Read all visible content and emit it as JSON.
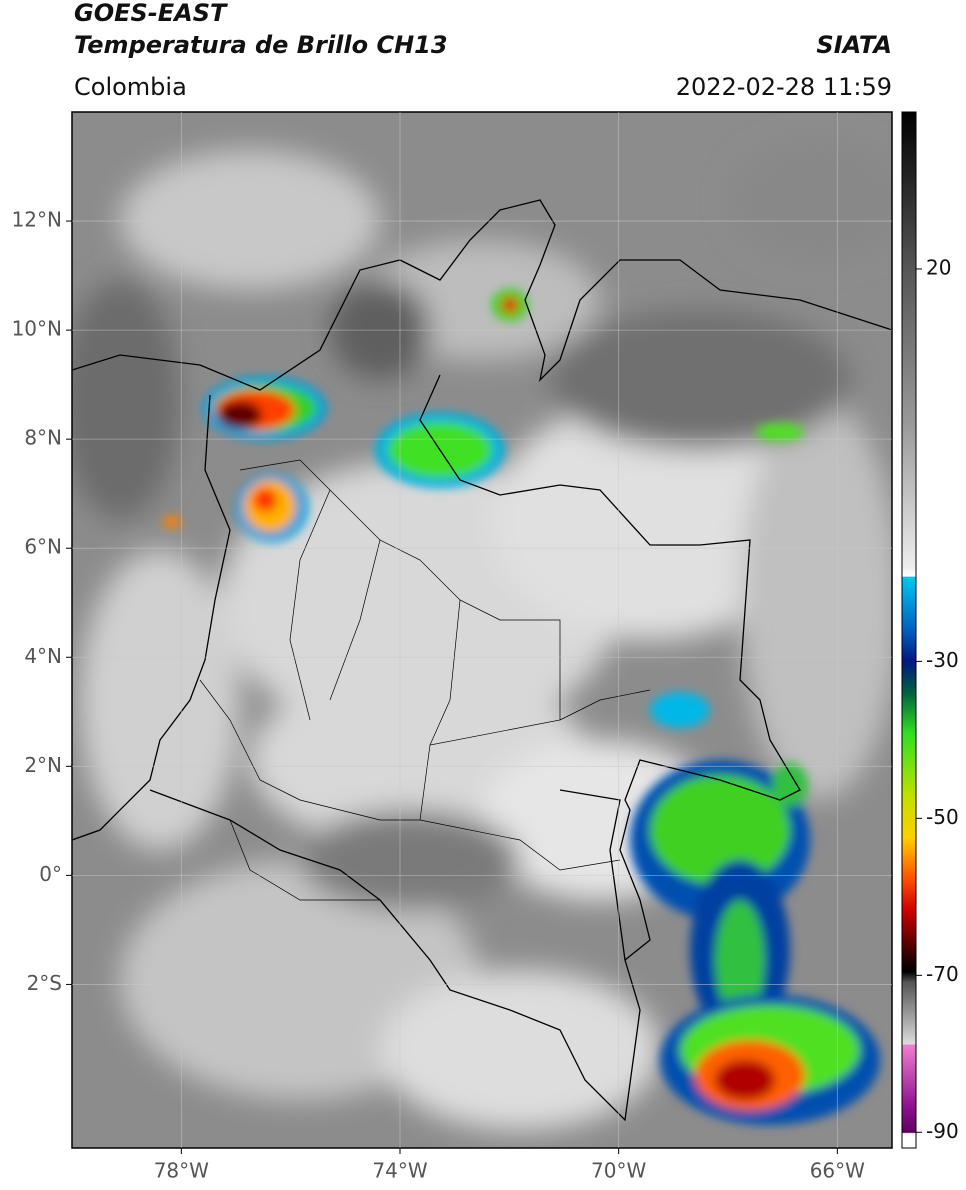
{
  "header": {
    "title": "GOES-EAST",
    "subtitle": "Temperatura de Brillo CH13",
    "region": "Colombia",
    "source": "SIATA",
    "timestamp": "2022-02-28 11:59"
  },
  "map": {
    "xlim": [
      -80,
      -65
    ],
    "ylim": [
      -5,
      14
    ],
    "xticks": [
      {
        "value": -78,
        "label": "78°W"
      },
      {
        "value": -74,
        "label": "74°W"
      },
      {
        "value": -70,
        "label": "70°W"
      },
      {
        "value": -66,
        "label": "66°W"
      }
    ],
    "yticks": [
      {
        "value": 12,
        "label": "12°N"
      },
      {
        "value": 10,
        "label": "10°N"
      },
      {
        "value": 8,
        "label": "8°N"
      },
      {
        "value": 6,
        "label": "6°N"
      },
      {
        "value": 4,
        "label": "4°N"
      },
      {
        "value": 2,
        "label": "2°N"
      },
      {
        "value": 0,
        "label": "0°"
      },
      {
        "value": -2,
        "label": "2°S"
      }
    ]
  },
  "colorbar": {
    "lim": [
      -92,
      40
    ],
    "ticks": [
      20,
      -30,
      -50,
      -70,
      -90
    ]
  }
}
